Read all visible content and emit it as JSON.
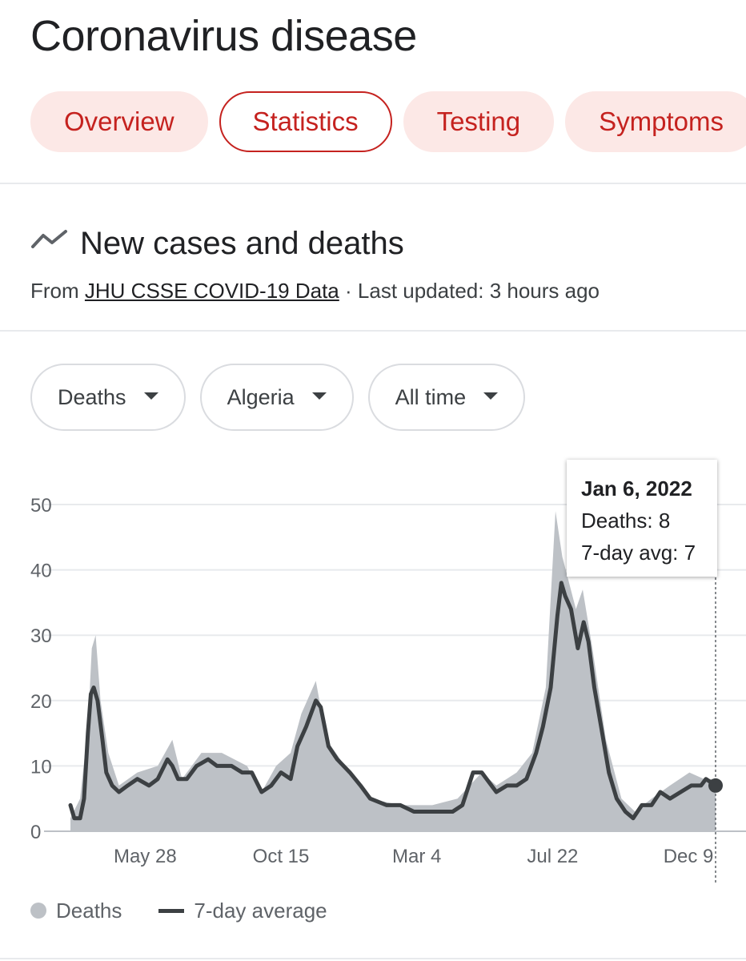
{
  "header": {
    "title": "Coronavirus disease",
    "tabs": [
      {
        "label": "Overview",
        "active": false
      },
      {
        "label": "Statistics",
        "active": true
      },
      {
        "label": "Testing",
        "active": false
      },
      {
        "label": "Symptoms",
        "active": false
      }
    ]
  },
  "section": {
    "icon": "trend-line-icon",
    "title": "New cases and deaths",
    "source_prefix": "From",
    "source_link": "JHU CSSE COVID-19 Data",
    "updated": "· Last updated: 3 hours ago"
  },
  "filters": [
    {
      "label": "Deaths"
    },
    {
      "label": "Algeria"
    },
    {
      "label": "All time"
    }
  ],
  "tooltip": {
    "date": "Jan 6, 2022",
    "deaths": "Deaths: 8",
    "avg": "7-day avg: 7"
  },
  "legend": {
    "deaths": "Deaths",
    "average": "7-day average"
  },
  "colors": {
    "accent": "#c5221f",
    "chip_bg": "#fce8e6",
    "bars": "#bdc1c6",
    "line": "#3c4043"
  },
  "chart_data": {
    "type": "area",
    "x_start": "2020-03-12",
    "x_end": "2022-01-06",
    "ylim": [
      0,
      50
    ],
    "yticks": [
      0,
      10,
      20,
      30,
      40,
      50
    ],
    "xticks": [
      {
        "label": "May 28",
        "date": "2020-05-28"
      },
      {
        "label": "Oct 15",
        "date": "2020-10-15"
      },
      {
        "label": "Mar 4",
        "date": "2021-03-04"
      },
      {
        "label": "Jul 22",
        "date": "2021-07-22"
      },
      {
        "label": "Dec 9",
        "date": "2021-12-09"
      }
    ],
    "series": [
      {
        "name": "Deaths",
        "style": "bars",
        "points": [
          [
            "2020-03-12",
            2
          ],
          [
            "2020-03-22",
            5
          ],
          [
            "2020-03-30",
            16
          ],
          [
            "2020-04-03",
            28
          ],
          [
            "2020-04-07",
            30
          ],
          [
            "2020-04-12",
            20
          ],
          [
            "2020-04-20",
            12
          ],
          [
            "2020-05-01",
            7
          ],
          [
            "2020-05-20",
            9
          ],
          [
            "2020-06-10",
            10
          ],
          [
            "2020-06-25",
            14
          ],
          [
            "2020-07-05",
            8
          ],
          [
            "2020-07-25",
            12
          ],
          [
            "2020-08-15",
            12
          ],
          [
            "2020-09-10",
            10
          ],
          [
            "2020-09-25",
            6
          ],
          [
            "2020-10-10",
            10
          ],
          [
            "2020-10-25",
            12
          ],
          [
            "2020-11-05",
            18
          ],
          [
            "2020-11-20",
            23
          ],
          [
            "2020-12-01",
            14
          ],
          [
            "2020-12-20",
            10
          ],
          [
            "2021-01-15",
            5
          ],
          [
            "2021-02-15",
            4
          ],
          [
            "2021-03-20",
            4
          ],
          [
            "2021-04-15",
            5
          ],
          [
            "2021-05-10",
            9
          ],
          [
            "2021-05-25",
            7
          ],
          [
            "2021-06-15",
            9
          ],
          [
            "2021-07-01",
            12
          ],
          [
            "2021-07-15",
            22
          ],
          [
            "2021-07-25",
            49
          ],
          [
            "2021-08-01",
            42
          ],
          [
            "2021-08-08",
            38
          ],
          [
            "2021-08-15",
            34
          ],
          [
            "2021-08-22",
            37
          ],
          [
            "2021-09-01",
            28
          ],
          [
            "2021-09-15",
            14
          ],
          [
            "2021-10-01",
            5
          ],
          [
            "2021-10-15",
            3
          ],
          [
            "2021-11-01",
            5
          ],
          [
            "2021-11-20",
            7
          ],
          [
            "2021-12-10",
            9
          ],
          [
            "2021-12-25",
            8
          ],
          [
            "2022-01-06",
            8
          ]
        ]
      },
      {
        "name": "7-day average",
        "style": "line",
        "points": [
          [
            "2020-03-12",
            4
          ],
          [
            "2020-03-16",
            2
          ],
          [
            "2020-03-22",
            2
          ],
          [
            "2020-03-26",
            5
          ],
          [
            "2020-03-30",
            15
          ],
          [
            "2020-04-02",
            21
          ],
          [
            "2020-04-05",
            22
          ],
          [
            "2020-04-09",
            20
          ],
          [
            "2020-04-14",
            14
          ],
          [
            "2020-04-18",
            9
          ],
          [
            "2020-04-24",
            7
          ],
          [
            "2020-05-01",
            6
          ],
          [
            "2020-05-10",
            7
          ],
          [
            "2020-05-20",
            8
          ],
          [
            "2020-06-01",
            7
          ],
          [
            "2020-06-10",
            8
          ],
          [
            "2020-06-20",
            11
          ],
          [
            "2020-06-25",
            10
          ],
          [
            "2020-07-01",
            8
          ],
          [
            "2020-07-10",
            8
          ],
          [
            "2020-07-20",
            10
          ],
          [
            "2020-08-01",
            11
          ],
          [
            "2020-08-10",
            10
          ],
          [
            "2020-08-25",
            10
          ],
          [
            "2020-09-05",
            9
          ],
          [
            "2020-09-15",
            9
          ],
          [
            "2020-09-25",
            6
          ],
          [
            "2020-10-05",
            7
          ],
          [
            "2020-10-15",
            9
          ],
          [
            "2020-10-25",
            8
          ],
          [
            "2020-11-01",
            13
          ],
          [
            "2020-11-10",
            16
          ],
          [
            "2020-11-20",
            20
          ],
          [
            "2020-11-25",
            19
          ],
          [
            "2020-12-03",
            13
          ],
          [
            "2020-12-12",
            11
          ],
          [
            "2020-12-25",
            9
          ],
          [
            "2021-01-05",
            7
          ],
          [
            "2021-01-15",
            5
          ],
          [
            "2021-02-01",
            4
          ],
          [
            "2021-02-15",
            4
          ],
          [
            "2021-03-01",
            3
          ],
          [
            "2021-03-15",
            3
          ],
          [
            "2021-04-01",
            3
          ],
          [
            "2021-04-10",
            3
          ],
          [
            "2021-04-20",
            4
          ],
          [
            "2021-05-01",
            9
          ],
          [
            "2021-05-10",
            9
          ],
          [
            "2021-05-20",
            7
          ],
          [
            "2021-05-25",
            6
          ],
          [
            "2021-06-05",
            7
          ],
          [
            "2021-06-15",
            7
          ],
          [
            "2021-06-25",
            8
          ],
          [
            "2021-07-05",
            12
          ],
          [
            "2021-07-12",
            16
          ],
          [
            "2021-07-20",
            22
          ],
          [
            "2021-07-27",
            33
          ],
          [
            "2021-07-31",
            38
          ],
          [
            "2021-08-04",
            36
          ],
          [
            "2021-08-10",
            34
          ],
          [
            "2021-08-17",
            28
          ],
          [
            "2021-08-23",
            32
          ],
          [
            "2021-08-28",
            29
          ],
          [
            "2021-09-03",
            22
          ],
          [
            "2021-09-10",
            16
          ],
          [
            "2021-09-18",
            9
          ],
          [
            "2021-09-26",
            5
          ],
          [
            "2021-10-05",
            3
          ],
          [
            "2021-10-13",
            2
          ],
          [
            "2021-10-22",
            4
          ],
          [
            "2021-11-01",
            4
          ],
          [
            "2021-11-10",
            6
          ],
          [
            "2021-11-20",
            5
          ],
          [
            "2021-12-01",
            6
          ],
          [
            "2021-12-12",
            7
          ],
          [
            "2021-12-22",
            7
          ],
          [
            "2021-12-27",
            8
          ],
          [
            "2022-01-06",
            7
          ]
        ]
      }
    ]
  }
}
